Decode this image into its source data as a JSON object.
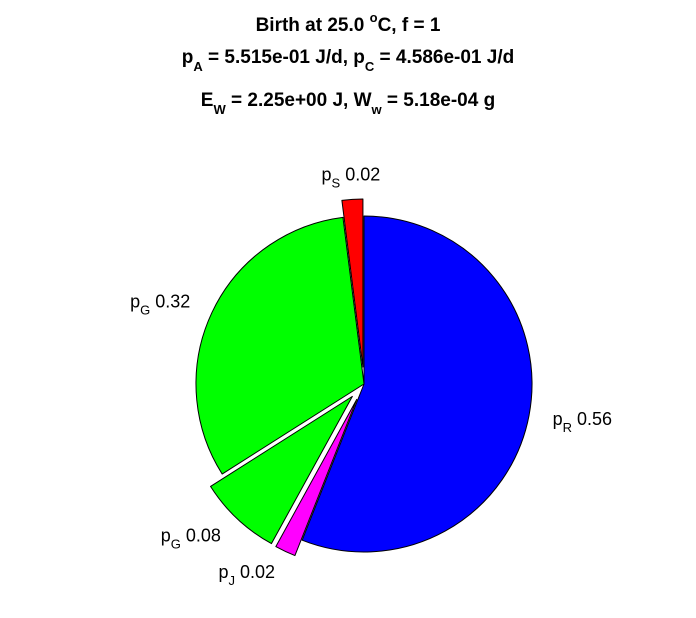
{
  "chart_data": {
    "type": "pie",
    "title_lines": [
      [
        {
          "t": "Birth at 25.0 "
        },
        {
          "t": "o",
          "sup": true
        },
        {
          "t": "C, f = 1"
        }
      ],
      [
        {
          "t": "p"
        },
        {
          "t": "A",
          "sub": true
        },
        {
          "t": " = 5.515e-01 J/d, p"
        },
        {
          "t": "C",
          "sub": true
        },
        {
          "t": " = 4.586e-01 J/d"
        }
      ],
      [
        {
          "t": "E"
        },
        {
          "t": "W",
          "sub": true
        },
        {
          "t": " = 2.25e+00 J, W"
        },
        {
          "t": "w",
          "sub": true
        },
        {
          "t": " = 5.18e-04 g"
        }
      ]
    ],
    "slices": [
      {
        "name": "p",
        "sub": "R",
        "label_value": "0.56",
        "value": 0.56,
        "color": "#0000ff",
        "exploded": false
      },
      {
        "name": "p",
        "sub": "J",
        "label_value": "0.02",
        "value": 0.02,
        "color": "#ff00ff",
        "exploded": true
      },
      {
        "name": "p",
        "sub": "G",
        "label_value": "0.08",
        "value": 0.08,
        "color": "#00ff00",
        "exploded": true
      },
      {
        "name": "p",
        "sub": "G",
        "label_value": "0.32",
        "value": 0.32,
        "color": "#00ff00",
        "exploded": false
      },
      {
        "name": "p",
        "sub": "S",
        "label_value": "0.02",
        "value": 0.02,
        "color": "#ff0000",
        "exploded": true
      }
    ],
    "start_direction": "top",
    "direction": "clockwise",
    "edge_color": "#000000"
  }
}
